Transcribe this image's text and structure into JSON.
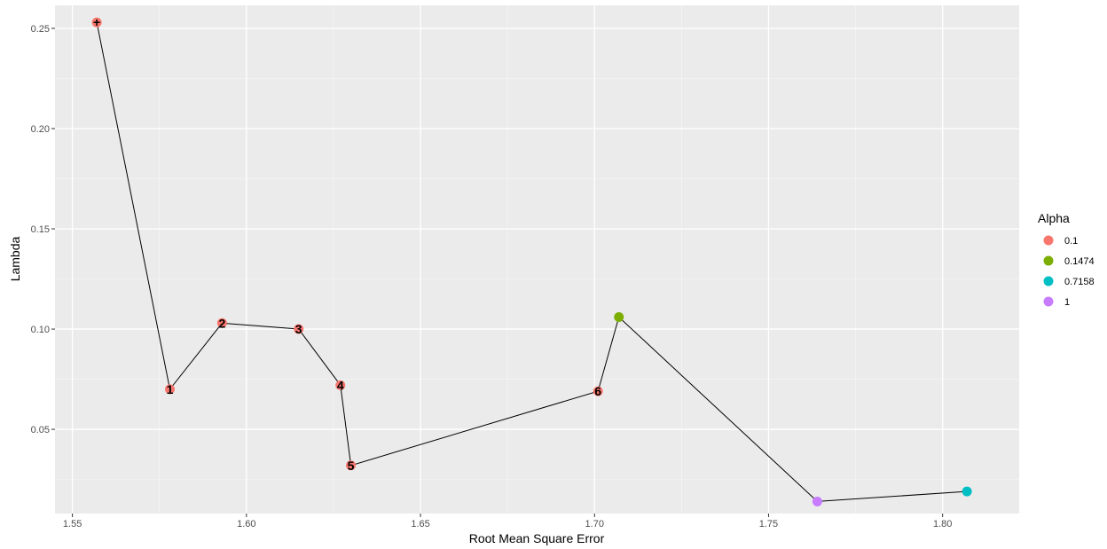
{
  "chart_data": {
    "type": "scatter",
    "xlabel": "Root Mean Square Error",
    "ylabel": "Lambda",
    "xlim": [
      1.545,
      1.822
    ],
    "ylim": [
      0.008,
      0.2615
    ],
    "x_ticks": [
      1.55,
      1.6,
      1.65,
      1.7,
      1.75,
      1.8
    ],
    "x_tick_labels": [
      "1.55",
      "1.60",
      "1.65",
      "1.70",
      "1.75",
      "1.80"
    ],
    "y_ticks": [
      0.05,
      0.1,
      0.15,
      0.2,
      0.25
    ],
    "y_tick_labels": [
      "0.05",
      "0.10",
      "0.15",
      "0.20",
      "0.25"
    ],
    "grid": true,
    "legend": {
      "title": "Alpha",
      "position": "right",
      "items": [
        {
          "label": "0.1",
          "color": "#F8766D"
        },
        {
          "label": "0.1474",
          "color": "#7CAE00"
        },
        {
          "label": "0.7158",
          "color": "#00BFC4"
        },
        {
          "label": "1",
          "color": "#C77CFF"
        }
      ]
    },
    "points": [
      {
        "x": 1.557,
        "y": 0.253,
        "alpha": "0.1",
        "label": "+"
      },
      {
        "x": 1.578,
        "y": 0.07,
        "alpha": "0.1",
        "label": "1"
      },
      {
        "x": 1.593,
        "y": 0.103,
        "alpha": "0.1",
        "label": "2"
      },
      {
        "x": 1.615,
        "y": 0.1,
        "alpha": "0.1",
        "label": "3"
      },
      {
        "x": 1.627,
        "y": 0.072,
        "alpha": "0.1",
        "label": "4"
      },
      {
        "x": 1.63,
        "y": 0.032,
        "alpha": "0.1",
        "label": "5"
      },
      {
        "x": 1.701,
        "y": 0.069,
        "alpha": "0.1",
        "label": "6"
      },
      {
        "x": 1.707,
        "y": 0.106,
        "alpha": "0.1474",
        "label": ""
      },
      {
        "x": 1.764,
        "y": 0.014,
        "alpha": "1",
        "label": ""
      },
      {
        "x": 1.807,
        "y": 0.019,
        "alpha": "0.7158",
        "label": ""
      }
    ],
    "line_color": "#000000"
  }
}
